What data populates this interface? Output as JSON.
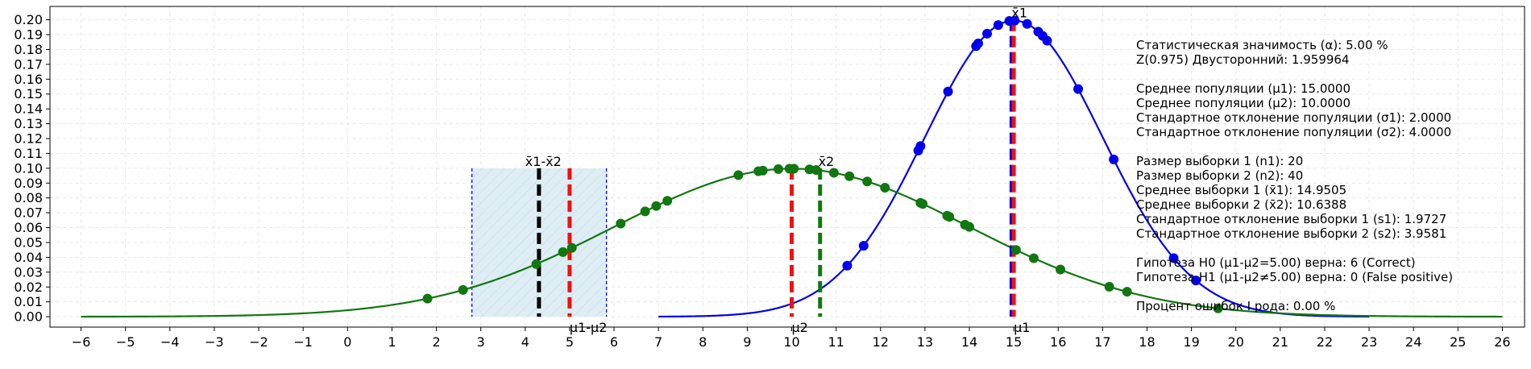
{
  "chart_data": {
    "type": "line",
    "xlim": [
      -6.7,
      26.5
    ],
    "ylim": [
      -0.007,
      0.209
    ],
    "x_ticks": [
      -6,
      -5,
      -4,
      -3,
      -2,
      -1,
      0,
      1,
      2,
      3,
      4,
      5,
      6,
      7,
      8,
      9,
      10,
      11,
      12,
      13,
      14,
      15,
      16,
      17,
      18,
      19,
      20,
      21,
      22,
      23,
      24,
      25,
      26
    ],
    "y_ticks": [
      0.0,
      0.01,
      0.02,
      0.03,
      0.04,
      0.05,
      0.06,
      0.07,
      0.08,
      0.09,
      0.1,
      0.11,
      0.12,
      0.13,
      0.14,
      0.15,
      0.16,
      0.17,
      0.18,
      0.19,
      0.2
    ],
    "grid": true,
    "series": [
      {
        "color": "#0000ee",
        "distribution": {
          "mean": 15.0,
          "sd": 2.0,
          "x_min": 7,
          "x_max": 23
        },
        "points_x": [
          11.25,
          11.62,
          12.85,
          12.9,
          13.52,
          14.15,
          14.2,
          14.4,
          14.65,
          14.9,
          15.02,
          15.3,
          15.55,
          15.65,
          15.75,
          16.45,
          17.25,
          18.6,
          19.1
        ]
      },
      {
        "color": "#117711",
        "distribution": {
          "mean": 10.0,
          "sd": 4.0,
          "x_min": -6,
          "x_max": 26
        },
        "points_x": [
          1.8,
          2.6,
          4.25,
          4.85,
          5.05,
          6.15,
          6.7,
          6.95,
          7.2,
          8.8,
          9.25,
          9.35,
          9.7,
          9.95,
          10.05,
          10.4,
          10.55,
          10.95,
          11.3,
          11.7,
          12.1,
          12.9,
          12.95,
          13.5,
          13.55,
          13.9,
          14.0,
          15.05,
          15.45,
          16.05,
          17.15,
          17.55,
          19.6
        ]
      }
    ],
    "confidence_region": {
      "x_from": 2.8,
      "x_to": 5.83,
      "y_top": 0.1
    },
    "vlines": [
      {
        "x": 4.31,
        "color": "#000000",
        "y_top": 0.1
      },
      {
        "x": 5.0,
        "color": "#ee1111",
        "y_top": 0.1
      },
      {
        "x": 10.0,
        "color": "#ee1111",
        "y_top": 0.1
      },
      {
        "x": 10.6388,
        "color": "#117711",
        "y_top": 0.1
      },
      {
        "x": 14.9505,
        "color": "#0000ee",
        "y_top": 0.2
      },
      {
        "x": 15.0,
        "color": "#ee1111",
        "y_top": 0.2
      }
    ],
    "annotations": [
      {
        "text": "x̄1-x̄2",
        "x": 4.0,
        "y": 0.1,
        "anchor": "start",
        "pos": "above"
      },
      {
        "text": "x̄2",
        "x": 10.6,
        "y": 0.1,
        "anchor": "start",
        "pos": "above"
      },
      {
        "text": "x̄1",
        "x": 14.95,
        "y": 0.2,
        "anchor": "start",
        "pos": "above"
      },
      {
        "text": "μ1-μ2",
        "x": 5.0,
        "y": 0.0,
        "anchor": "start",
        "pos": "below"
      },
      {
        "text": "μ2",
        "x": 10.0,
        "y": 0.0,
        "anchor": "start",
        "pos": "below"
      },
      {
        "text": "μ1",
        "x": 15.0,
        "y": 0.0,
        "anchor": "start",
        "pos": "below"
      }
    ],
    "info_lines": [
      "Статистическая значимость (α): 5.00 %",
      "Z(0.975) Двусторонний: 1.959964",
      "",
      "Среднее популяции (μ1): 15.0000",
      "Среднее популяции (μ2): 10.0000",
      "Стандартное отклонение популяции (σ1): 2.0000",
      "Стандартное отклонение популяции (σ2): 4.0000",
      "",
      "Размер выборки 1 (n1): 20",
      "Размер выборки 2 (n2): 40",
      "Среднее выборки 1 (x̄1): 14.9505",
      "Среднее выборки 2 (x̄2): 10.6388",
      "Стандартное отклонение выборки 1 (s1): 1.9727",
      "Стандартное отклонение выборки 2 (s2): 3.9581",
      "",
      "Гипотеза H0 (μ1-μ2=5.00) верна: 6 (Correct)",
      "Гипотеза H1 (μ1-μ2≠5.00) верна: 0 (False positive)",
      "",
      "Процент ошибок I рода: 0.00 %"
    ]
  }
}
